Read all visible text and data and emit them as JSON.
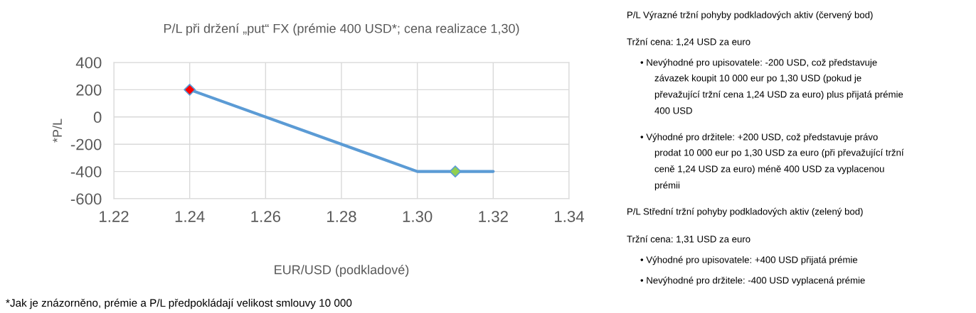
{
  "chart_data": {
    "type": "line",
    "title": "P/L při držení „put“ FX (prémie 400 USD*; cena realizace 1,30)",
    "xlabel": "EUR/USD (podkladové)",
    "ylabel": "*P/L",
    "series": [
      {
        "type": "line",
        "x": [
          1.24,
          1.3,
          1.32
        ],
        "values": [
          200,
          -400,
          -400
        ],
        "color": "#5b9bd5",
        "marker": "none",
        "line_style": "solid"
      },
      {
        "type": "scatter",
        "x": [
          1.24,
          1.31
        ],
        "values": [
          200,
          -400
        ],
        "colors": [
          "#ff0000",
          "#92d050"
        ],
        "marker": "diamond"
      }
    ],
    "xlim": [
      1.22,
      1.34
    ],
    "xticks": [
      {
        "value": 1.22,
        "label": "1.22"
      },
      {
        "value": 1.24,
        "label": "1.24"
      },
      {
        "value": 1.26,
        "label": "1.26"
      },
      {
        "value": 1.28,
        "label": "1.28"
      },
      {
        "value": 1.3,
        "label": "1.30"
      },
      {
        "value": 1.32,
        "label": "1.32"
      },
      {
        "value": 1.34,
        "label": "1.34"
      }
    ],
    "ylim": [
      -600,
      400
    ],
    "yticks": [
      -600,
      -400,
      -200,
      0,
      200,
      400
    ],
    "grid": true,
    "annotations": [
      "*Jak je znázorněno, prémie a P/L předpokládají velikost smlouvy 10 000",
      "P/L Výrazné tržní pohyby podkladových aktiv (červený bod)",
      "Tržní cena: 1,24 USD za euro",
      "• Nevýhodné pro upisovatele: -200 USD, což představuje",
      "závazek koupit 10 000 eur po 1,30 USD (pokud je",
      "převažující tržní cena 1,24 USD za euro) plus přijatá prémie",
      "400 USD",
      "• Výhodné pro držitele: +200 USD, což představuje právo",
      "prodat 10 000 eur po 1,30 USD za euro (při převažující tržní",
      "ceně 1,24 USD za euro) méně 400 USD za vyplacenou",
      "prémii",
      "P/L Střední tržní pohyby podkladových aktiv (zelený bod)",
      "Tržní cena: 1,31 USD za euro",
      "• Výhodné pro upisovatele: +400 USD přijatá prémie",
      "• Nevýhodné pro držitele: -400 USD vyplacená prémie"
    ]
  }
}
